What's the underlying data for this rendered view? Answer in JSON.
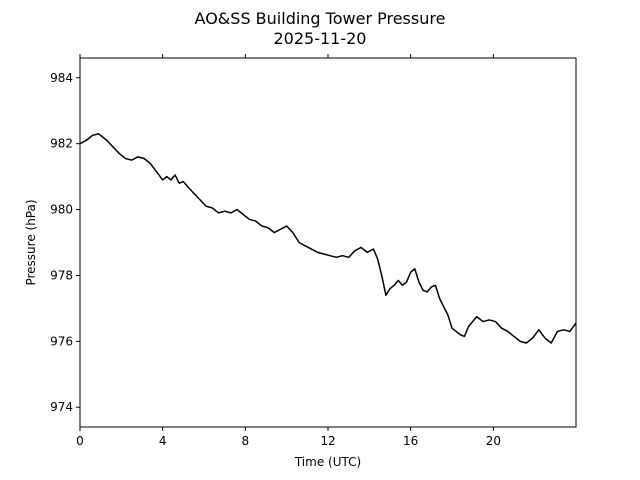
{
  "chart_data": {
    "type": "line",
    "title": "AO&SS Building Tower Pressure",
    "subtitle": "2025-11-20",
    "xlabel": "Time (UTC)",
    "ylabel": "Pressure (hPa)",
    "xlim": [
      0,
      24
    ],
    "ylim": [
      973.4,
      984.6
    ],
    "xticks": [
      0,
      4,
      8,
      12,
      16,
      20
    ],
    "yticks": [
      974,
      976,
      978,
      980,
      982,
      984
    ],
    "grid": false,
    "legend": "none",
    "line_color": "#000000",
    "series": [
      {
        "x": [
          0,
          0.3,
          0.6,
          0.9,
          1.1,
          1.3,
          1.6,
          1.9,
          2.2,
          2.5,
          2.8,
          3.1,
          3.4,
          3.7,
          4.0,
          4.2,
          4.4,
          4.6,
          4.8,
          5.0,
          5.2,
          5.5,
          5.8,
          6.1,
          6.4,
          6.7,
          7.0,
          7.3,
          7.6,
          7.9,
          8.2,
          8.5,
          8.8,
          9.1,
          9.4,
          9.7,
          10.0,
          10.3,
          10.6,
          10.9,
          11.2,
          11.5,
          11.8,
          12.1,
          12.4,
          12.7,
          13.0,
          13.3,
          13.6,
          13.9,
          14.2,
          14.4,
          14.6,
          14.8,
          15.0,
          15.2,
          15.4,
          15.6,
          15.8,
          16.0,
          16.2,
          16.4,
          16.6,
          16.8,
          17.0,
          17.2,
          17.4,
          17.6,
          17.8,
          18.0,
          18.2,
          18.4,
          18.6,
          18.8,
          19.0,
          19.2,
          19.5,
          19.8,
          20.1,
          20.4,
          20.7,
          21.0,
          21.3,
          21.6,
          21.9,
          22.2,
          22.5,
          22.8,
          23.1,
          23.4,
          23.7,
          24.0
        ],
        "y": [
          982.0,
          982.1,
          982.25,
          982.3,
          982.2,
          982.1,
          981.9,
          981.7,
          981.55,
          981.5,
          981.6,
          981.55,
          981.4,
          981.15,
          980.9,
          981.0,
          980.9,
          981.05,
          980.8,
          980.85,
          980.7,
          980.5,
          980.3,
          980.1,
          980.05,
          979.9,
          979.95,
          979.9,
          980.0,
          979.85,
          979.7,
          979.65,
          979.5,
          979.45,
          979.3,
          979.4,
          979.5,
          979.3,
          979.0,
          978.9,
          978.8,
          978.7,
          978.65,
          978.6,
          978.55,
          978.6,
          978.55,
          978.75,
          978.85,
          978.7,
          978.8,
          978.5,
          978.0,
          977.4,
          977.6,
          977.7,
          977.85,
          977.7,
          977.8,
          978.1,
          978.2,
          977.8,
          977.55,
          977.5,
          977.65,
          977.7,
          977.3,
          977.05,
          976.8,
          976.4,
          976.3,
          976.2,
          976.15,
          976.45,
          976.6,
          976.75,
          976.6,
          976.65,
          976.6,
          976.4,
          976.3,
          976.15,
          976.0,
          975.95,
          976.1,
          976.35,
          976.1,
          975.95,
          976.3,
          976.35,
          976.3,
          976.55
        ]
      }
    ]
  }
}
